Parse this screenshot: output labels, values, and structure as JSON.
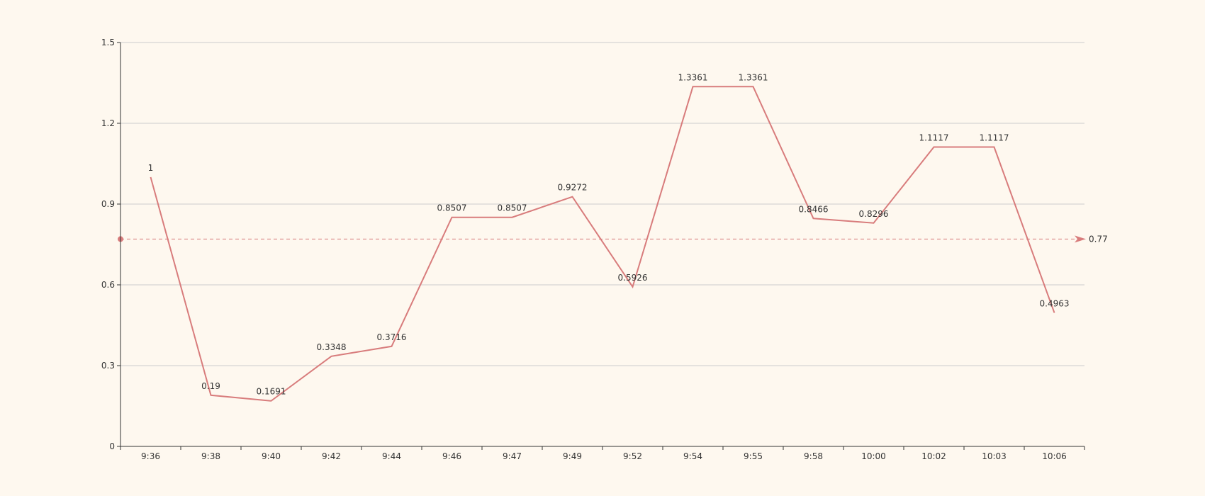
{
  "colors": {
    "background": "#fef8ef",
    "series": "#d87c7c",
    "axis": "#333333",
    "grid": "#cccccc",
    "text": "#333333"
  },
  "chart_data": {
    "type": "line",
    "categories": [
      "9:36",
      "9:38",
      "9:40",
      "9:42",
      "9:44",
      "9:46",
      "9:47",
      "9:49",
      "9:52",
      "9:54",
      "9:55",
      "9:58",
      "10:00",
      "10:02",
      "10:03",
      "10:06"
    ],
    "series": [
      {
        "values": [
          1,
          0.19,
          0.1691,
          0.3348,
          0.3716,
          0.8507,
          0.8507,
          0.9272,
          0.5926,
          1.3361,
          1.3361,
          0.8466,
          0.8296,
          1.1117,
          1.1117,
          0.4963
        ],
        "labels": [
          "1",
          "0.19",
          "0.1691",
          "0.3348",
          "0.3716",
          "0.8507",
          "0.8507",
          "0.9272",
          "0.5926",
          "1.3361",
          "1.3361",
          "0.8466",
          "0.8296",
          "1.1117",
          "1.1117",
          "0.4963"
        ]
      }
    ],
    "ylim": [
      0,
      1.5
    ],
    "yticks": [
      0,
      0.3,
      0.6,
      0.9,
      1.2,
      1.5
    ],
    "ytick_labels": [
      "0",
      "0.3",
      "0.6",
      "0.9",
      "1.2",
      "1.5"
    ],
    "reference_line": {
      "value": 0.77,
      "label": "0.77"
    },
    "grid": true,
    "legend": "none",
    "title": "",
    "xlabel": "",
    "ylabel": ""
  }
}
